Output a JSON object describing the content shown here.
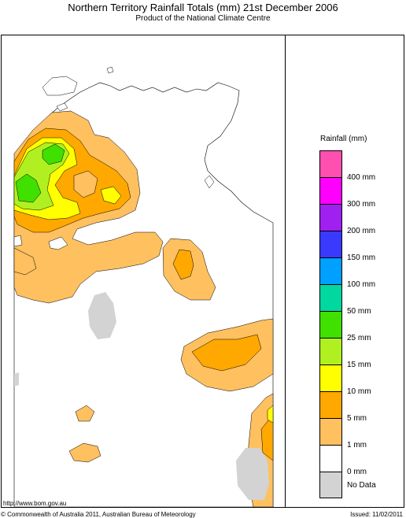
{
  "header": {
    "title": "Northern Territory Rainfall Totals (mm) 21st December 2006",
    "subtitle": "Product of the National Climate Centre"
  },
  "legend": {
    "title": "Rainfall (mm)",
    "items": [
      {
        "label": "400 mm",
        "color": "#ff4fb0"
      },
      {
        "label": "300 mm",
        "color": "#ff00ff"
      },
      {
        "label": "200 mm",
        "color": "#a020f0"
      },
      {
        "label": "150 mm",
        "color": "#3a3aff"
      },
      {
        "label": "100 mm",
        "color": "#00a0ff"
      },
      {
        "label": "50 mm",
        "color": "#00d8a0"
      },
      {
        "label": "25 mm",
        "color": "#40e000"
      },
      {
        "label": "15 mm",
        "color": "#b0f020"
      },
      {
        "label": "10 mm",
        "color": "#ffff00"
      },
      {
        "label": "5 mm",
        "color": "#ffa800"
      },
      {
        "label": "1 mm",
        "color": "#ffc060"
      },
      {
        "label": "0 mm",
        "color": "#ffffff"
      },
      {
        "label": "No Data",
        "color": "#d3d3d3"
      }
    ]
  },
  "footer": {
    "url": "http://www.bom.gov.au",
    "copyright": "© Commonwealth of Australia 2011, Australian Bureau of Meteorology",
    "issued": "Issued: 11/02/2011"
  }
}
